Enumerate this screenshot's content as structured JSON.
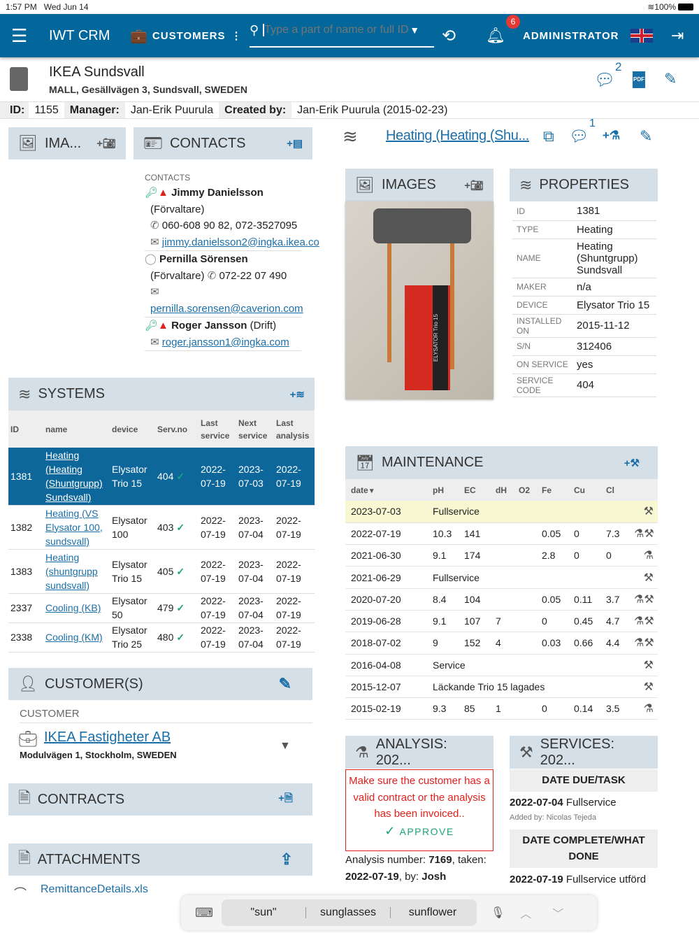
{
  "status": {
    "time": "1:57 PM",
    "date": "Wed Jun 14",
    "battery": "100%"
  },
  "nav": {
    "app": "IWT CRM",
    "section": "CUSTOMERS",
    "search_placeholder": "Type a part of name or full ID.",
    "notif_count": "6",
    "user": "ADMINISTRATOR"
  },
  "header": {
    "title": "IKEA Sundsvall",
    "address": "MALL, Gesällvägen 3, Sundsvall, SWEDEN",
    "comments_count": "2",
    "pdf": "PDF"
  },
  "info": {
    "id_label": "ID:",
    "id": "1155",
    "manager_label": "Manager:",
    "manager": "Jan-Erik Puurula",
    "created_label": "Created by:",
    "created": "Jan-Erik Puurula (2015-02-23)"
  },
  "left_images": {
    "title": "IMA..."
  },
  "contacts": {
    "title": "CONTACTS",
    "section": "CONTACTS",
    "items": [
      {
        "name": "Jimmy Danielsson",
        "role": "(Förvaltare)",
        "phone": "060-608 90 82, 072-3527095",
        "email": "jimmy.danielsson2@ingka.ikea.co"
      },
      {
        "name": "Pernilla Sörensen",
        "role": "(Förvaltare)",
        "phone": "072-22 07 490",
        "email": "pernilla.sorensen@caverion.com"
      },
      {
        "name": "Roger Jansson",
        "role": "(Drift)",
        "email": "roger.jansson1@ingka.com"
      }
    ]
  },
  "systems": {
    "title": "SYSTEMS",
    "headers": [
      "ID",
      "name",
      "device",
      "Serv.no",
      "Last service",
      "Next service",
      "Last analysis"
    ],
    "rows": [
      {
        "id": "1381",
        "name": "Heating (Heating (Shuntgrupp) Sundsvall)",
        "device": "Elysator Trio 15",
        "servno": "404",
        "last": "2022-07-19",
        "next": "2023-07-03",
        "analysis": "2022-07-19",
        "selected": true
      },
      {
        "id": "1382",
        "name": "Heating (VS Elysator 100, sundsvall)",
        "device": "Elysator 100",
        "servno": "403",
        "last": "2022-07-19",
        "next": "2023-07-04",
        "analysis": "2022-07-19"
      },
      {
        "id": "1383",
        "name": "Heating (shuntgrupp sundsvall)",
        "device": "Elysator Trio 15",
        "servno": "405",
        "last": "2022-07-19",
        "next": "2023-07-04",
        "analysis": "2022-07-19"
      },
      {
        "id": "2337",
        "name": "Cooling (KB)",
        "device": "Elysator 50",
        "servno": "479",
        "last": "2022-07-19",
        "next": "2023-07-04",
        "analysis": "2022-07-19"
      },
      {
        "id": "2338",
        "name": "Cooling (KM)",
        "device": "Elysator Trio 25",
        "servno": "480",
        "last": "2022-07-19",
        "next": "2023-07-04",
        "analysis": "2022-07-19"
      }
    ]
  },
  "customers": {
    "title": "CUSTOMER(S)",
    "label": "CUSTOMER",
    "name": "IKEA Fastigheter AB",
    "address": "Modulvägen 1, Stockholm, SWEDEN"
  },
  "contracts": {
    "title": "CONTRACTS"
  },
  "attachments": {
    "title": "ATTACHMENTS",
    "file": "RemittanceDetails.xls"
  },
  "system": {
    "title": "Heating (Heating (Shu...",
    "comments_count": "1"
  },
  "images": {
    "title": "IMAGES",
    "photo_label": "ELYSATOR Trio 15"
  },
  "properties": {
    "title": "PROPERTIES",
    "rows": [
      {
        "k": "ID",
        "v": "1381"
      },
      {
        "k": "TYPE",
        "v": "Heating"
      },
      {
        "k": "NAME",
        "v": "Heating (Shuntgrupp) Sundsvall"
      },
      {
        "k": "MAKER",
        "v": "n/a"
      },
      {
        "k": "DEVICE",
        "v": "Elysator Trio 15"
      },
      {
        "k": "INSTALLED ON",
        "v": "2015-11-12"
      },
      {
        "k": "S/N",
        "v": "312406"
      },
      {
        "k": "ON SERVICE",
        "v": "yes"
      },
      {
        "k": "SERVICE CODE",
        "v": "404"
      }
    ]
  },
  "maintenance": {
    "title": "MAINTENANCE",
    "headers": [
      "date",
      "pH",
      "EC",
      "dH",
      "O2",
      "Fe",
      "Cu",
      "Cl"
    ],
    "rows": [
      {
        "date": "2023-07-03",
        "text": "Fullservice",
        "icons": "S",
        "hl": true
      },
      {
        "date": "2022-07-19",
        "v": [
          "10.3",
          "141",
          "",
          "",
          "0.05",
          "0",
          "7.3"
        ],
        "icons": "AS"
      },
      {
        "date": "2021-06-30",
        "v": [
          "9.1",
          "174",
          "",
          "",
          "2.8",
          "0",
          "0"
        ],
        "icons": "A"
      },
      {
        "date": "2021-06-29",
        "text": "Fullservice",
        "icons": "S"
      },
      {
        "date": "2020-07-20",
        "v": [
          "8.4",
          "104",
          "",
          "",
          "0.05",
          "0.11",
          "3.7"
        ],
        "icons": "AS"
      },
      {
        "date": "2019-06-28",
        "v": [
          "9.1",
          "107",
          "7",
          "",
          "0",
          "0.45",
          "4.7"
        ],
        "icons": "AS"
      },
      {
        "date": "2018-07-02",
        "v": [
          "9",
          "152",
          "4",
          "",
          "0.03",
          "0.66",
          "4.4"
        ],
        "icons": "AS"
      },
      {
        "date": "2016-04-08",
        "text": "Service",
        "icons": "S"
      },
      {
        "date": "2015-12-07",
        "text": "Läckande Trio 15 lagades",
        "icons": "S"
      },
      {
        "date": "2015-02-19",
        "v": [
          "9.3",
          "85",
          "1",
          "",
          "0",
          "0.14",
          "3.5"
        ],
        "icons": "A"
      }
    ]
  },
  "analysis": {
    "title": "ANALYSIS: 202...",
    "warning": "Make sure the customer has a valid contract or the analysis has been invoiced..",
    "approve": "APPROVE",
    "number_label": "Analysis number:",
    "number": "7169",
    "taken_label": ", taken:",
    "taken": "2022-07-19",
    "by_label": ", by:",
    "by": "Josh"
  },
  "services": {
    "title": "SERVICES: 202...",
    "due_header": "DATE DUE/TASK",
    "due_date": "2022-07-04",
    "due_task": "Fullservice",
    "added_by": "Added by: Nicolas Tejeda",
    "done_header": "DATE COMPLETE/WHAT DONE",
    "done_date": "2022-07-19",
    "done_task": "Fullservice utförd"
  },
  "keyboard": {
    "suggestions": [
      "\"sun\"",
      "sunglasses",
      "sunflower"
    ]
  },
  "colors": {
    "nav": "#04679b",
    "panel_header": "#d4dfe7",
    "accent": "#1b6fa8",
    "selected_row": "#0d679b",
    "highlight_row": "#f7f7d2",
    "warning": "#e0201c",
    "approve": "#19a57a"
  }
}
